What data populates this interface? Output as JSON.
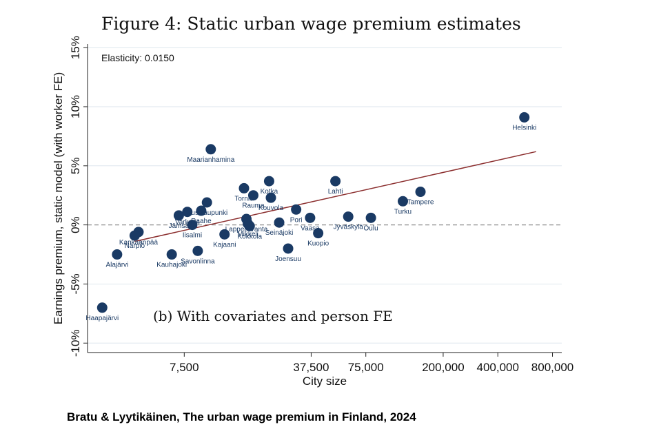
{
  "title": "Figure 4: Static urban wage premium estimates",
  "caption": "Bratu & Lyytikäinen, The urban wage premium in Finland, 2024",
  "chart_data": {
    "type": "scatter",
    "xlabel": "City size",
    "ylabel": "Earnings premium, static model (with worker FE)",
    "x_scale": "log",
    "xlim": [
      2200,
      900000
    ],
    "ylim": [
      -0.108,
      0.153
    ],
    "x_ticks": [
      {
        "value": 7500,
        "label": "7,500"
      },
      {
        "value": 37500,
        "label": "37,500"
      },
      {
        "value": 75000,
        "label": "75,000"
      },
      {
        "value": 200000,
        "label": "200,000"
      },
      {
        "value": 400000,
        "label": "400,000"
      },
      {
        "value": 800000,
        "label": "800,000"
      }
    ],
    "y_ticks": [
      {
        "value": -0.1,
        "label": "-10%"
      },
      {
        "value": -0.05,
        "label": "-5%"
      },
      {
        "value": 0.0,
        "label": "0%"
      },
      {
        "value": 0.05,
        "label": "5%"
      },
      {
        "value": 0.1,
        "label": "10%"
      },
      {
        "value": 0.15,
        "label": "15%"
      }
    ],
    "grid": true,
    "reference_line_y": 0,
    "annotation": "Elasticity: 0.0150",
    "panel_label": "(b) With covariates and person FE",
    "fit_line": {
      "x": [
        4000,
        650000
      ],
      "y": [
        -0.014,
        0.062
      ]
    },
    "colors": {
      "points": "#1a3a64",
      "fit": "#8b2e2e",
      "grid": "#dde6ee",
      "reference": "#8a8a8a"
    },
    "points": [
      {
        "name": "Helsinki",
        "x": 560000,
        "y": 0.091
      },
      {
        "name": "Tampere",
        "x": 150000,
        "y": 0.028
      },
      {
        "name": "Turku",
        "x": 120000,
        "y": 0.02
      },
      {
        "name": "Oulu",
        "x": 80000,
        "y": 0.006
      },
      {
        "name": "Jyväskylä",
        "x": 60000,
        "y": 0.007
      },
      {
        "name": "Lahti",
        "x": 51000,
        "y": 0.037
      },
      {
        "name": "Kuopio",
        "x": 41000,
        "y": -0.007
      },
      {
        "name": "Pori",
        "x": 31000,
        "y": 0.013
      },
      {
        "name": "Vaasa",
        "x": 37000,
        "y": 0.006
      },
      {
        "name": "Joensuu",
        "x": 28000,
        "y": -0.02
      },
      {
        "name": "Seinäjoki",
        "x": 25000,
        "y": 0.002
      },
      {
        "name": "Kouvola",
        "x": 22500,
        "y": 0.023
      },
      {
        "name": "Kotka",
        "x": 22000,
        "y": 0.037
      },
      {
        "name": "Rauma",
        "x": 18000,
        "y": 0.025
      },
      {
        "name": "Tornio",
        "x": 16000,
        "y": 0.031
      },
      {
        "name": "Lappeenranta",
        "x": 16500,
        "y": 0.005
      },
      {
        "name": "Mikkeli",
        "x": 16800,
        "y": 0.001
      },
      {
        "name": "Kokkola",
        "x": 17200,
        "y": -0.001
      },
      {
        "name": "Kajaani",
        "x": 12500,
        "y": -0.008
      },
      {
        "name": "Maarianhamina",
        "x": 10500,
        "y": 0.064
      },
      {
        "name": "Uusikaupunki",
        "x": 10000,
        "y": 0.019
      },
      {
        "name": "Raahe",
        "x": 9300,
        "y": 0.012
      },
      {
        "name": "Varkaus",
        "x": 7800,
        "y": 0.011
      },
      {
        "name": "Jämsä",
        "x": 7000,
        "y": 0.008
      },
      {
        "name": "Iisalmi",
        "x": 8300,
        "y": 0.0
      },
      {
        "name": "Savonlinna",
        "x": 8900,
        "y": -0.022
      },
      {
        "name": "Kauhajoki",
        "x": 6400,
        "y": -0.025
      },
      {
        "name": "Kankaanpää",
        "x": 4200,
        "y": -0.006
      },
      {
        "name": "Närpiö",
        "x": 4000,
        "y": -0.009
      },
      {
        "name": "Alajärvi",
        "x": 3200,
        "y": -0.025
      },
      {
        "name": "Haapajärvi",
        "x": 2650,
        "y": -0.07
      }
    ]
  }
}
